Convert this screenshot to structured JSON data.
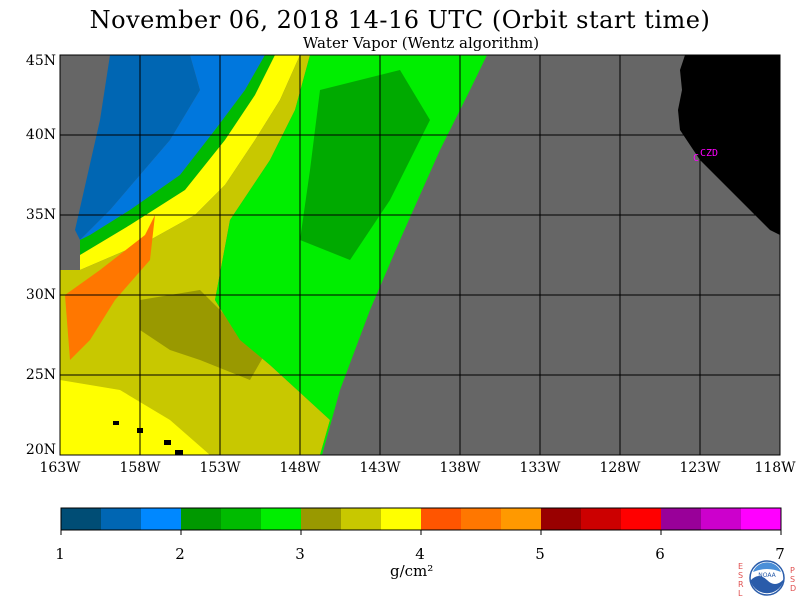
{
  "title": "November 06, 2018  14-16 UTC  (Orbit start time)",
  "subtitle": "Water Vapor (Wentz algorithm)",
  "map": {
    "lat_labels": [
      "45N",
      "40N",
      "35N",
      "30N",
      "25N",
      "20N"
    ],
    "lon_labels": [
      "163W",
      "158W",
      "153W",
      "148W",
      "143W",
      "138W",
      "133W",
      "128W",
      "123W",
      "118W"
    ],
    "station_label": "CZD",
    "colors": {
      "no_data": "#666666",
      "land": "#000000",
      "grid": "#000000",
      "station": "#ff00ff"
    }
  },
  "colorbar": {
    "tick_labels": [
      "1",
      "2",
      "3",
      "4",
      "5",
      "6",
      "7"
    ],
    "unit": "g/cm²",
    "colors": [
      "#004d75",
      "#0066b3",
      "#0088ff",
      "#009900",
      "#00bb00",
      "#00ee00",
      "#999900",
      "#c8c800",
      "#ffff00",
      "#ff5500",
      "#ff7700",
      "#ff9900",
      "#990000",
      "#cc0000",
      "#ff0000",
      "#990099",
      "#cc00cc",
      "#ff00ff"
    ]
  },
  "logo": {
    "left_letters": [
      "E",
      "S",
      "R",
      "L"
    ],
    "right_letters": [
      "P",
      "S",
      "D"
    ],
    "text": "NOAA"
  }
}
